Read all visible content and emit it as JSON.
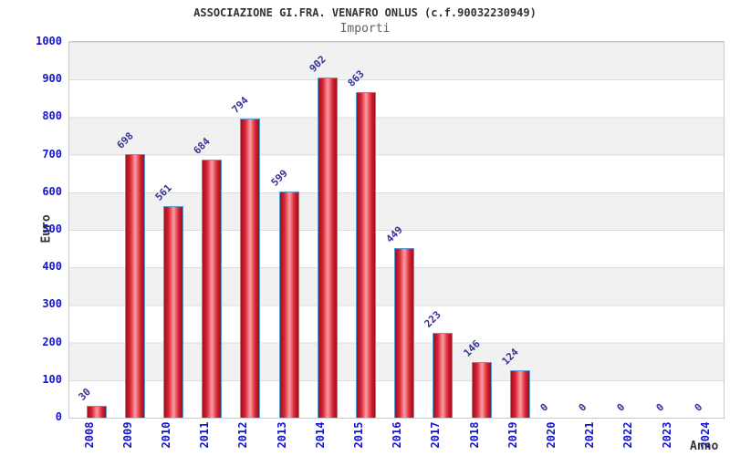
{
  "header": {
    "title": "ASSOCIAZIONE GI.FRA. VENAFRO ONLUS (c.f.90032230949)",
    "subtitle": "Importi"
  },
  "chart_data": {
    "type": "bar",
    "title": "ASSOCIAZIONE GI.FRA. VENAFRO ONLUS (c.f.90032230949)",
    "subtitle": "Importi",
    "xlabel": "Anno",
    "ylabel": "Euro",
    "categories": [
      "2008",
      "2009",
      "2010",
      "2011",
      "2012",
      "2013",
      "2014",
      "2015",
      "2016",
      "2017",
      "2018",
      "2019",
      "2020",
      "2021",
      "2022",
      "2023",
      "2024"
    ],
    "values": [
      30,
      698,
      561,
      684,
      794,
      599,
      902,
      863,
      449,
      223,
      146,
      124,
      0,
      0,
      0,
      0,
      0
    ],
    "ylim": [
      0,
      1000
    ],
    "ytick_step": 100,
    "grid": "horizontal-bands",
    "legend": "none",
    "bar_value_labels_rotation_deg": -45,
    "xtick_rotation_deg": -90,
    "colors": {
      "bar_border": "#5b9bd5",
      "bar_fill_dark": "#9e0f1e",
      "bar_fill_mid": "#d12230",
      "bar_fill_light": "#f4959d",
      "tick_label": "#1414cc",
      "value_label": "#333399",
      "band_gray": "#f1f1f1",
      "band_white": "#ffffff",
      "grid_line": "#dcdcdc",
      "plot_border": "#c9c9c9",
      "title": "#333333",
      "subtitle": "#606060",
      "axis_label": "#333333"
    }
  }
}
